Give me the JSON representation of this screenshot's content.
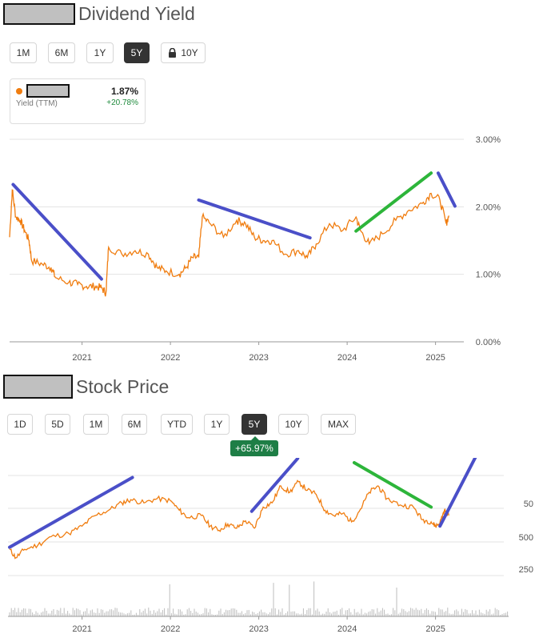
{
  "dividend": {
    "title": "Dividend Yield",
    "buttons": [
      {
        "label": "1M",
        "active": false
      },
      {
        "label": "6M",
        "active": false
      },
      {
        "label": "1Y",
        "active": false
      },
      {
        "label": "5Y",
        "active": true
      },
      {
        "label": "10Y",
        "active": false,
        "locked": true
      }
    ],
    "card": {
      "metric": "Yield (TTM)",
      "value": "1.87%",
      "change": "+20.78%"
    },
    "colors": {
      "line": "#f07d10",
      "trend_down": "#4a4fc8",
      "trend_up": "#2db53a",
      "change": "#1e8a3c",
      "dot": "#f07d10"
    }
  },
  "stock": {
    "title": "Stock Price",
    "buttons": [
      {
        "label": "1D",
        "active": false
      },
      {
        "label": "5D",
        "active": false
      },
      {
        "label": "1M",
        "active": false
      },
      {
        "label": "6M",
        "active": false
      },
      {
        "label": "YTD",
        "active": false
      },
      {
        "label": "1Y",
        "active": false
      },
      {
        "label": "5Y",
        "active": true
      },
      {
        "label": "10Y",
        "active": false
      },
      {
        "label": "MAX",
        "active": false
      }
    ],
    "badge": "+65.97%"
  },
  "chart_data": [
    {
      "type": "line",
      "title": "Dividend Yield",
      "x_ticks": [
        "2021",
        "2022",
        "2023",
        "2024",
        "2025"
      ],
      "y_ticks": [
        "0.00%",
        "1.00%",
        "2.00%",
        "3.00%"
      ],
      "ylim": [
        0,
        3
      ],
      "grid": true,
      "series": [
        {
          "values": [
            [
              2020.18,
              1.55
            ],
            [
              2020.21,
              2.25
            ],
            [
              2020.25,
              1.85
            ],
            [
              2020.3,
              1.8
            ],
            [
              2020.35,
              1.65
            ],
            [
              2020.4,
              1.5
            ],
            [
              2020.43,
              1.2
            ],
            [
              2020.55,
              1.15
            ],
            [
              2020.65,
              1.1
            ],
            [
              2020.7,
              0.95
            ],
            [
              2020.85,
              0.88
            ],
            [
              2020.95,
              0.85
            ],
            [
              2021.05,
              0.82
            ],
            [
              2021.15,
              0.82
            ],
            [
              2021.22,
              0.8
            ],
            [
              2021.27,
              0.72
            ],
            [
              2021.3,
              1.4
            ],
            [
              2021.45,
              1.3
            ],
            [
              2021.6,
              1.35
            ],
            [
              2021.75,
              1.3
            ],
            [
              2021.85,
              1.1
            ],
            [
              2021.95,
              1.05
            ],
            [
              2022.1,
              1.0
            ],
            [
              2022.18,
              1.1
            ],
            [
              2022.25,
              1.25
            ],
            [
              2022.32,
              1.25
            ],
            [
              2022.36,
              1.85
            ],
            [
              2022.45,
              1.75
            ],
            [
              2022.6,
              1.55
            ],
            [
              2022.75,
              1.8
            ],
            [
              2022.85,
              1.75
            ],
            [
              2022.95,
              1.55
            ],
            [
              2023.05,
              1.5
            ],
            [
              2023.15,
              1.5
            ],
            [
              2023.3,
              1.3
            ],
            [
              2023.45,
              1.35
            ],
            [
              2023.55,
              1.25
            ],
            [
              2023.65,
              1.45
            ],
            [
              2023.8,
              1.75
            ],
            [
              2023.95,
              1.65
            ],
            [
              2024.1,
              1.85
            ],
            [
              2024.15,
              1.65
            ],
            [
              2024.25,
              1.45
            ],
            [
              2024.4,
              1.6
            ],
            [
              2024.55,
              1.8
            ],
            [
              2024.7,
              1.95
            ],
            [
              2024.85,
              2.05
            ],
            [
              2024.95,
              2.2
            ],
            [
              2025.05,
              2.1
            ],
            [
              2025.12,
              1.75
            ],
            [
              2025.15,
              1.87
            ]
          ]
        }
      ],
      "annotations": [
        {
          "kind": "trend-line",
          "color": "blue",
          "from": [
            2020.22,
            2.33
          ],
          "to": [
            2021.22,
            0.93
          ]
        },
        {
          "kind": "trend-line",
          "color": "blue",
          "from": [
            2022.32,
            2.1
          ],
          "to": [
            2023.58,
            1.54
          ]
        },
        {
          "kind": "trend-line",
          "color": "green",
          "from": [
            2024.1,
            1.64
          ],
          "to": [
            2024.95,
            2.5
          ]
        },
        {
          "kind": "trend-line",
          "color": "blue",
          "from": [
            2025.03,
            2.5
          ],
          "to": [
            2025.22,
            2.01
          ]
        }
      ]
    },
    {
      "type": "line",
      "title": "Stock Price",
      "x_ticks": [
        "2021",
        "2022",
        "2023",
        "2024",
        "2025"
      ],
      "y_ticks": [
        "250",
        "500",
        "50"
      ],
      "grid": true,
      "series": [
        {
          "values": [
            [
              2020.18,
              0.18
            ],
            [
              2020.25,
              0.1
            ],
            [
              2020.35,
              0.18
            ],
            [
              2020.5,
              0.22
            ],
            [
              2020.65,
              0.3
            ],
            [
              2020.85,
              0.33
            ],
            [
              2021.0,
              0.4
            ],
            [
              2021.15,
              0.5
            ],
            [
              2021.3,
              0.55
            ],
            [
              2021.45,
              0.62
            ],
            [
              2021.55,
              0.65
            ],
            [
              2021.7,
              0.62
            ],
            [
              2021.85,
              0.66
            ],
            [
              2022.0,
              0.64
            ],
            [
              2022.1,
              0.55
            ],
            [
              2022.2,
              0.48
            ],
            [
              2022.35,
              0.5
            ],
            [
              2022.45,
              0.4
            ],
            [
              2022.55,
              0.36
            ],
            [
              2022.65,
              0.42
            ],
            [
              2022.75,
              0.38
            ],
            [
              2022.85,
              0.45
            ],
            [
              2022.95,
              0.38
            ],
            [
              2023.05,
              0.58
            ],
            [
              2023.15,
              0.62
            ],
            [
              2023.25,
              0.78
            ],
            [
              2023.35,
              0.72
            ],
            [
              2023.45,
              0.82
            ],
            [
              2023.55,
              0.74
            ],
            [
              2023.65,
              0.7
            ],
            [
              2023.75,
              0.55
            ],
            [
              2023.85,
              0.5
            ],
            [
              2023.95,
              0.52
            ],
            [
              2024.05,
              0.44
            ],
            [
              2024.15,
              0.56
            ],
            [
              2024.25,
              0.72
            ],
            [
              2024.35,
              0.78
            ],
            [
              2024.45,
              0.66
            ],
            [
              2024.6,
              0.6
            ],
            [
              2024.75,
              0.58
            ],
            [
              2024.85,
              0.46
            ],
            [
              2024.95,
              0.44
            ],
            [
              2025.0,
              0.4
            ],
            [
              2025.05,
              0.43
            ],
            [
              2025.1,
              0.55
            ],
            [
              2025.15,
              0.5
            ]
          ]
        }
      ],
      "annotations": [
        {
          "kind": "trend-line",
          "color": "blue",
          "from": [
            2020.18,
            0.2
          ],
          "to": [
            2021.57,
            0.86
          ]
        },
        {
          "kind": "trend-line",
          "color": "blue",
          "from": [
            2022.92,
            0.54
          ],
          "to": [
            2023.44,
            1.04
          ]
        },
        {
          "kind": "trend-line",
          "color": "green",
          "from": [
            2024.08,
            1.0
          ],
          "to": [
            2024.95,
            0.58
          ]
        },
        {
          "kind": "trend-line",
          "color": "blue",
          "from": [
            2025.05,
            0.4
          ],
          "to": [
            2025.5,
            1.13
          ]
        }
      ]
    }
  ]
}
